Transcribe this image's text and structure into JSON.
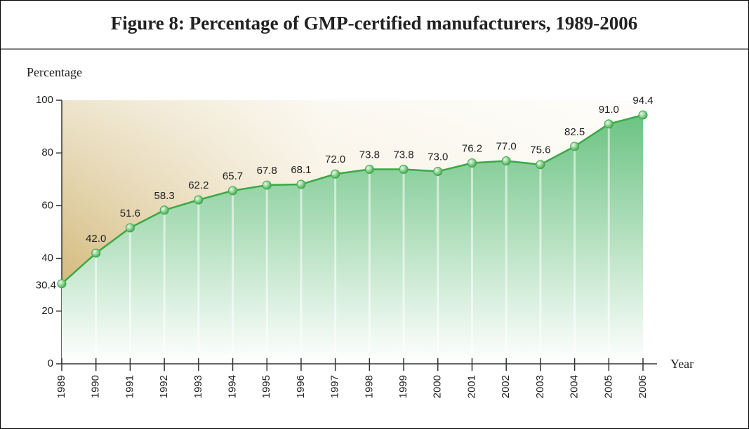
{
  "chart_data": {
    "type": "line",
    "title": "Figure 8: Percentage of GMP-certified manufacturers, 1989-2006",
    "y_label": "Percentage",
    "x_label": "Year",
    "categories": [
      "1989",
      "1990",
      "1991",
      "1992",
      "1993",
      "1994",
      "1995",
      "1996",
      "1997",
      "1998",
      "1999",
      "2000",
      "2001",
      "2002",
      "2003",
      "2004",
      "2005",
      "2006"
    ],
    "series": [
      {
        "name": "GMP-certified manufacturers",
        "color": "#3aa845",
        "values": [
          30.4,
          42,
          51.6,
          58.3,
          62.2,
          65.7,
          67.8,
          68.1,
          72,
          73.8,
          73.8,
          73,
          76.2,
          77,
          75.6,
          82.5,
          91,
          94.4
        ],
        "value_labels": [
          "30.4",
          "42.0",
          "51.6",
          "58.3",
          "62.2",
          "65.7",
          "67.8",
          "68.1",
          "72.0",
          "73.8",
          "73.8",
          "73.0",
          "76.2",
          "77.0",
          "75.6",
          "82.5",
          "91.0",
          "94.4"
        ]
      }
    ],
    "ylim": [
      0,
      100
    ],
    "yticks": [
      0,
      20,
      40,
      60,
      80,
      100
    ],
    "area": true
  }
}
